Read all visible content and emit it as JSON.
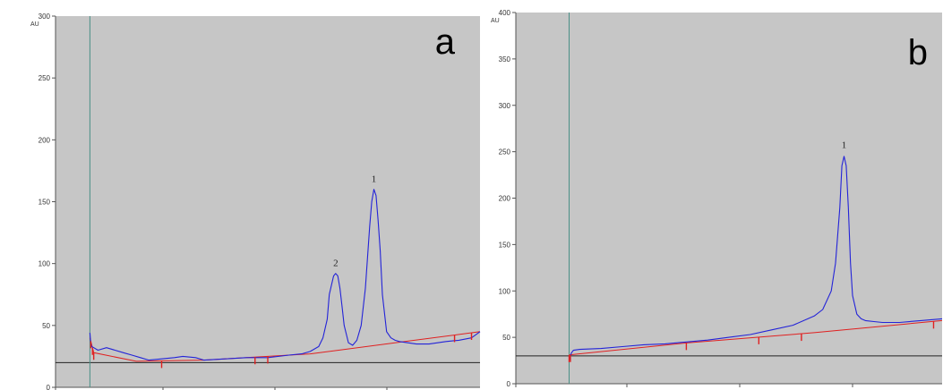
{
  "colors": {
    "plot_bg": "#c6c6c6",
    "trace": "#2323d8",
    "baseline": "#e02020",
    "reference": "#222222",
    "marker": "#4a8f86",
    "tick_mark": "#e02020"
  },
  "chart_data": [
    {
      "type": "line",
      "panel_label": "a",
      "ylabel": "AU",
      "ylim": [
        0,
        300
      ],
      "yticks": [
        "0",
        "50",
        "100",
        "150",
        "200",
        "250",
        "300"
      ],
      "xlim": [
        0,
        1
      ],
      "grid": false,
      "injection_marker_x": 0.081,
      "reference_line_y": 20,
      "series": [
        {
          "x": [
            0.081,
            0.083,
            0.085,
            0.09,
            0.1,
            0.12,
            0.14,
            0.16,
            0.18,
            0.2,
            0.22,
            0.25,
            0.28,
            0.3,
            0.33,
            0.35,
            0.4,
            0.45,
            0.5,
            0.55,
            0.58,
            0.6,
            0.62,
            0.63,
            0.64,
            0.645,
            0.655,
            0.66,
            0.665,
            0.67,
            0.675,
            0.68,
            0.69,
            0.7,
            0.71,
            0.72,
            0.73,
            0.74,
            0.745,
            0.75,
            0.755,
            0.76,
            0.765,
            0.77,
            0.78,
            0.79,
            0.8,
            0.81,
            0.83,
            0.85,
            0.88,
            0.9,
            0.92,
            0.95,
            0.98,
            1.0
          ],
          "y": [
            44,
            36,
            33,
            32,
            30,
            32,
            30,
            28,
            26,
            24,
            22,
            23,
            24,
            25,
            24,
            22,
            23,
            24,
            24,
            26,
            27,
            29,
            33,
            40,
            55,
            75,
            90,
            92,
            90,
            80,
            65,
            50,
            36,
            34,
            38,
            50,
            80,
            130,
            150,
            160,
            155,
            135,
            110,
            75,
            45,
            40,
            38,
            37,
            36,
            35,
            35,
            36,
            37,
            38,
            40,
            45
          ]
        }
      ],
      "baseline": {
        "x": [
          0.081,
          0.09,
          0.19,
          0.35,
          0.6,
          1.0
        ],
        "y": [
          40,
          28,
          21,
          22,
          27,
          45
        ]
      },
      "tick_marks_x": [
        0.083,
        0.087,
        0.09,
        0.25,
        0.47,
        0.5,
        0.94,
        0.98
      ],
      "annotations": [
        {
          "label": "1",
          "x": 0.75,
          "y": 163
        },
        {
          "label": "2",
          "x": 0.66,
          "y": 95
        }
      ]
    },
    {
      "type": "line",
      "panel_label": "b",
      "ylabel": "AU",
      "ylim": [
        0,
        400
      ],
      "yticks": [
        "0",
        "50",
        "100",
        "150",
        "200",
        "250",
        "300",
        "350",
        "400"
      ],
      "xlim": [
        0,
        1
      ],
      "grid": false,
      "injection_marker_x": 0.125,
      "reference_line_y": 30,
      "series": [
        {
          "x": [
            0.125,
            0.13,
            0.135,
            0.15,
            0.2,
            0.25,
            0.3,
            0.35,
            0.4,
            0.45,
            0.5,
            0.55,
            0.6,
            0.65,
            0.7,
            0.72,
            0.74,
            0.75,
            0.76,
            0.765,
            0.77,
            0.775,
            0.78,
            0.785,
            0.79,
            0.8,
            0.81,
            0.82,
            0.84,
            0.86,
            0.9,
            0.95,
            1.0
          ],
          "y": [
            25,
            33,
            36,
            37,
            38,
            40,
            42,
            43,
            45,
            47,
            50,
            53,
            58,
            63,
            73,
            80,
            100,
            130,
            190,
            235,
            245,
            235,
            190,
            130,
            95,
            75,
            70,
            68,
            67,
            66,
            66,
            68,
            70
          ]
        }
      ],
      "baseline": {
        "x": [
          0.125,
          0.4,
          0.7,
          1.0
        ],
        "y": [
          31,
          44,
          55,
          68
        ]
      },
      "tick_marks_x": [
        0.125,
        0.128,
        0.4,
        0.57,
        0.67,
        0.98
      ],
      "annotations": [
        {
          "label": "1",
          "x": 0.77,
          "y": 250
        }
      ]
    }
  ]
}
